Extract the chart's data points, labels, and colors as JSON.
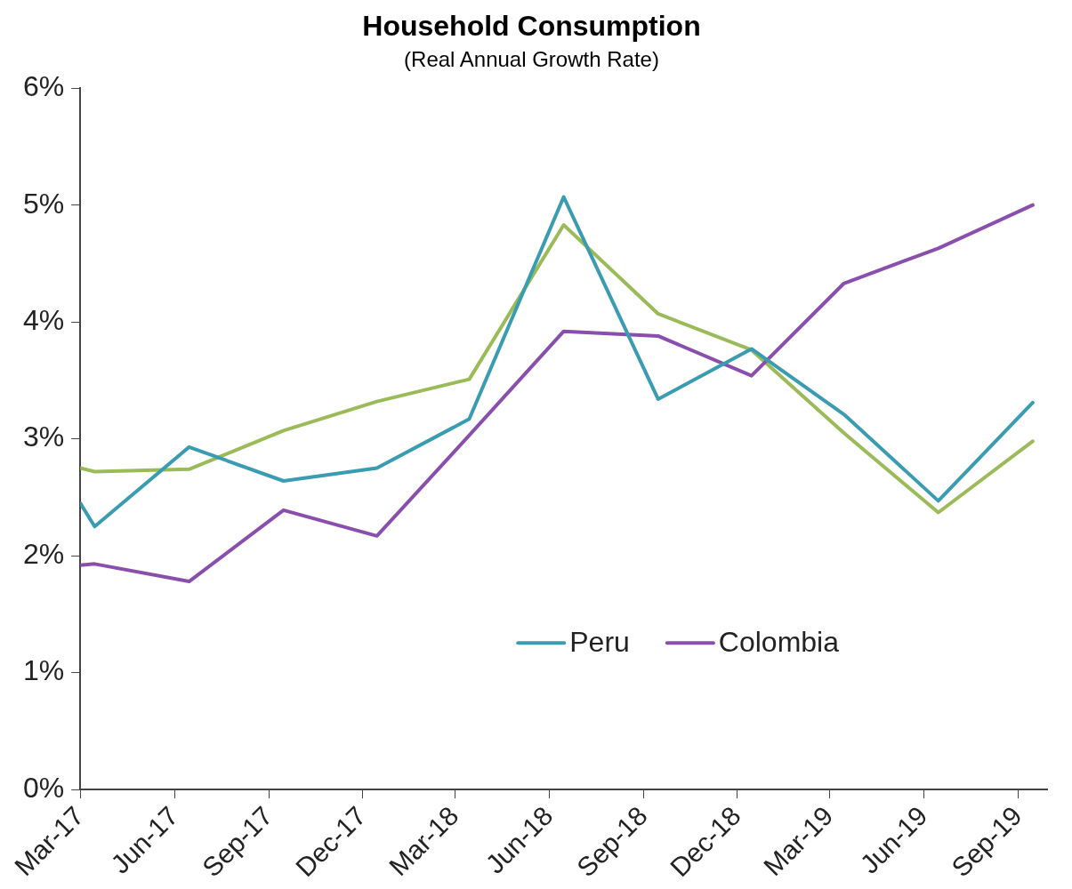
{
  "chart_data": {
    "type": "line",
    "title": "Household Consumption",
    "subtitle": "(Real Annual Growth Rate)",
    "x": [
      "2017-03-01",
      "2017-03-15",
      "2017-06-15",
      "2017-09-15",
      "2017-12-15",
      "2018-03-15",
      "2018-06-15",
      "2018-09-15",
      "2018-12-15",
      "2019-03-15",
      "2019-06-15",
      "2019-09-15"
    ],
    "series": [
      {
        "name": "Peru",
        "color": "#3a9cb0",
        "values": [
          2.45,
          2.25,
          2.93,
          2.64,
          2.75,
          3.17,
          5.07,
          3.34,
          3.77,
          3.21,
          2.47,
          3.31
        ]
      },
      {
        "name": "Colombia",
        "color": "#8a4fad",
        "values": [
          1.92,
          1.93,
          1.78,
          2.39,
          2.17,
          3.03,
          3.92,
          3.88,
          3.54,
          4.33,
          4.63,
          5.0
        ]
      },
      {
        "color": "#9bbb59",
        "values": [
          2.75,
          2.72,
          2.74,
          3.07,
          3.32,
          3.51,
          4.83,
          4.07,
          3.76,
          3.05,
          2.37,
          2.98
        ]
      }
    ],
    "xlim": [
      "2017-03-01",
      "2019-09-29"
    ],
    "xticks": [
      {
        "value": "2017-03-01",
        "label": "Mar-17"
      },
      {
        "value": "2017-06-01",
        "label": "Jun-17"
      },
      {
        "value": "2017-09-01",
        "label": "Sep-17"
      },
      {
        "value": "2017-12-01",
        "label": "Dec-17"
      },
      {
        "value": "2018-03-01",
        "label": "Mar-18"
      },
      {
        "value": "2018-06-01",
        "label": "Jun-18"
      },
      {
        "value": "2018-09-01",
        "label": "Sep-18"
      },
      {
        "value": "2018-12-01",
        "label": "Dec-18"
      },
      {
        "value": "2019-03-01",
        "label": "Mar-19"
      },
      {
        "value": "2019-06-01",
        "label": "Jun-19"
      },
      {
        "value": "2019-09-01",
        "label": "Sep-19"
      }
    ],
    "ylim": [
      0,
      6
    ],
    "yticks": [
      {
        "value": 0,
        "label": "0%"
      },
      {
        "value": 1,
        "label": "1%"
      },
      {
        "value": 2,
        "label": "2%"
      },
      {
        "value": 3,
        "label": "3%"
      },
      {
        "value": 4,
        "label": "4%"
      },
      {
        "value": 5,
        "label": "5%"
      },
      {
        "value": 6,
        "label": "6%"
      }
    ],
    "grid": false,
    "legend": "bottom",
    "marker": "none",
    "line_style": "solid"
  }
}
